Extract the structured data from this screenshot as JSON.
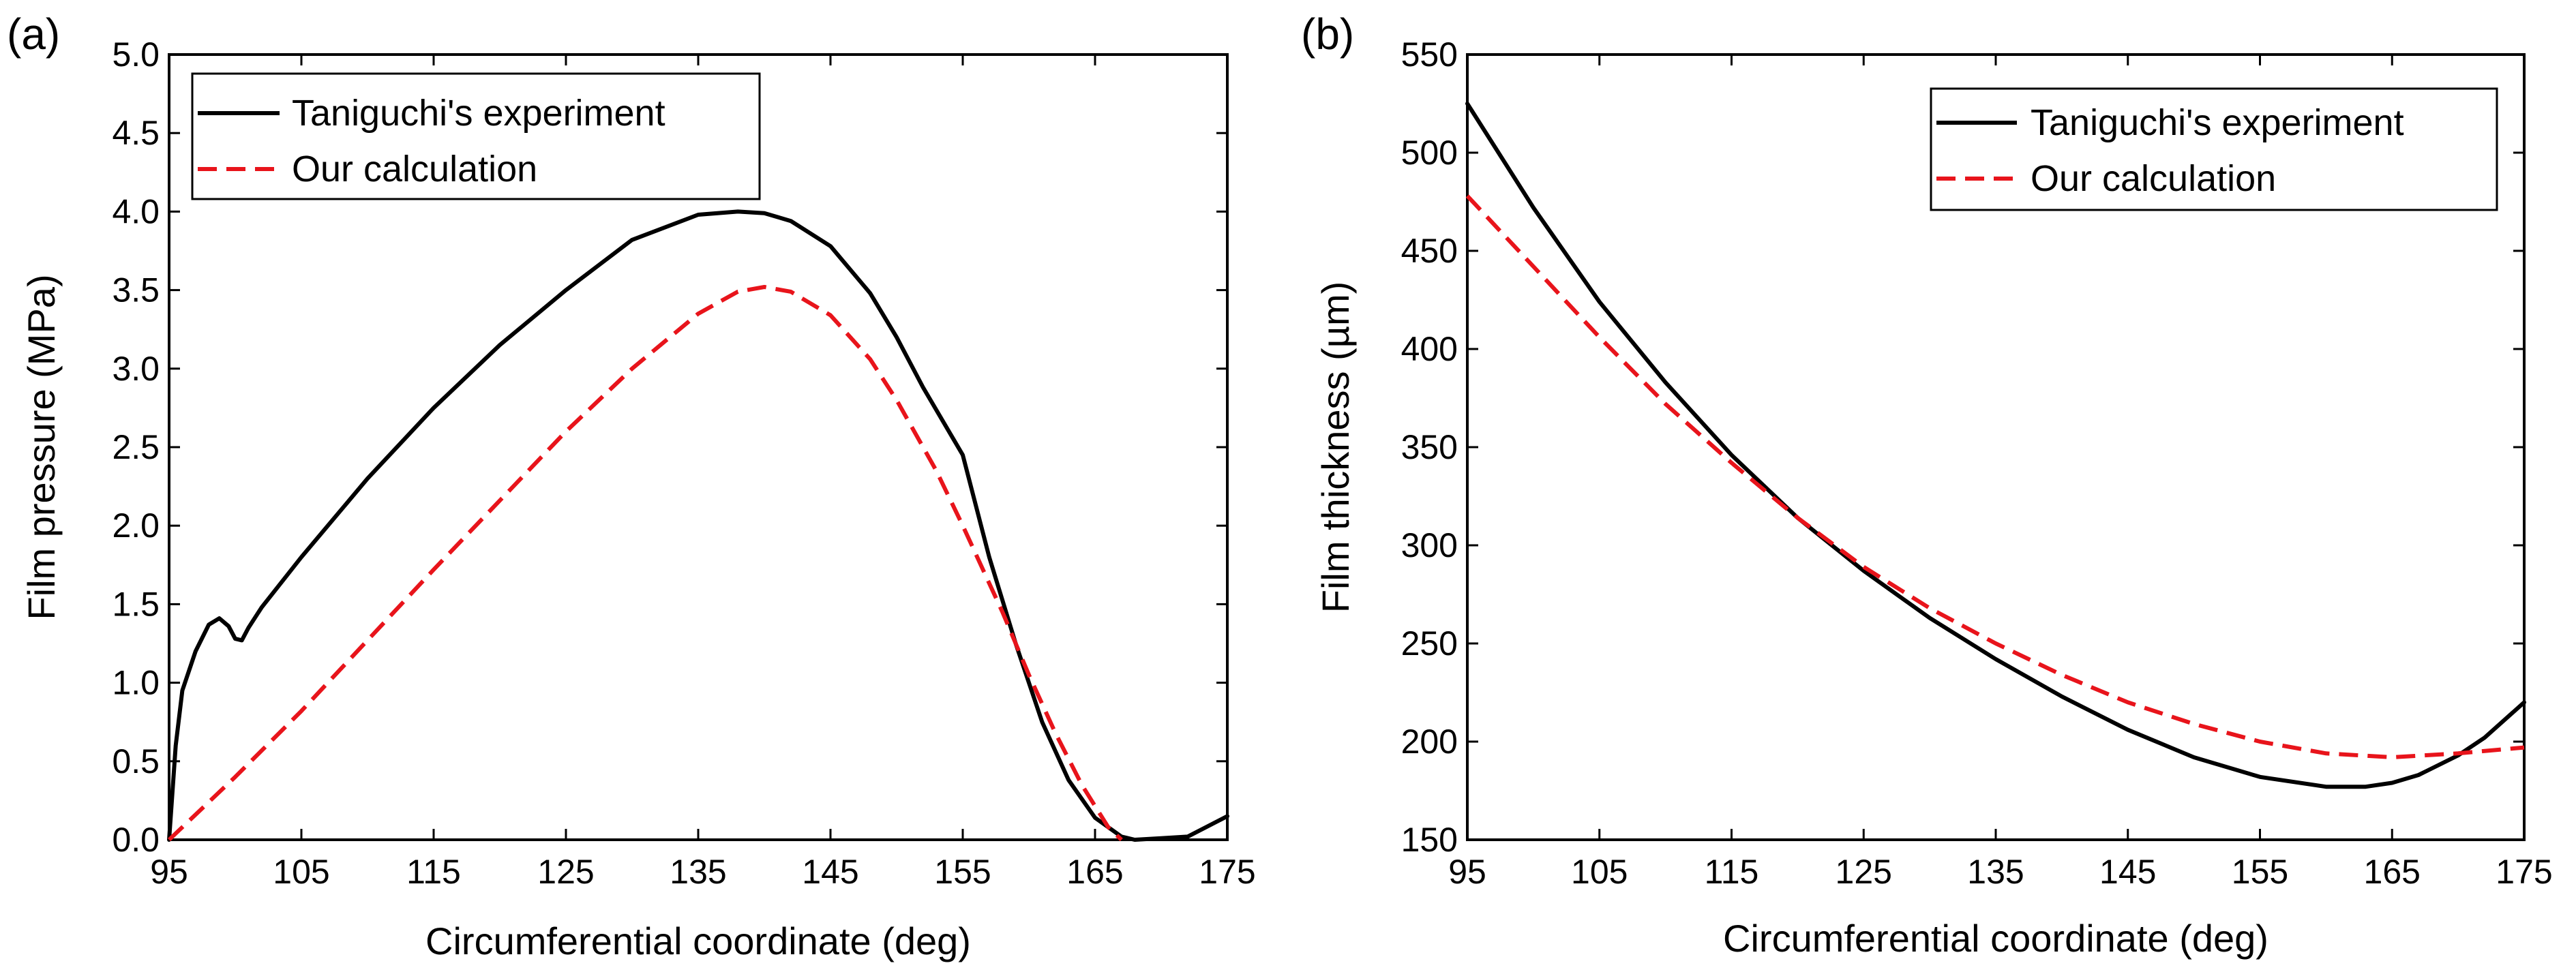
{
  "chart_data": [
    {
      "type": "line",
      "panel_label": "(a)",
      "xlabel": "Circumferential coordinate (deg)",
      "ylabel": "Film pressure (MPa)",
      "xlim": [
        95,
        175
      ],
      "ylim": [
        0,
        5
      ],
      "xticks": [
        "95",
        "105",
        "115",
        "125",
        "135",
        "145",
        "155",
        "165",
        "175"
      ],
      "yticks": [
        "0.0",
        "0.5",
        "1.0",
        "1.5",
        "2.0",
        "2.5",
        "3.0",
        "3.5",
        "4.0",
        "4.5",
        "5.0"
      ],
      "legend_position": "top-left",
      "series": [
        {
          "name": "Taniguchi's experiment",
          "color": "#000000",
          "style": "solid",
          "x": [
            95,
            95.5,
            96,
            97,
            98,
            98.8,
            99.5,
            100,
            100.5,
            101,
            102,
            105,
            110,
            115,
            120,
            125,
            130,
            135,
            138,
            140,
            142,
            145,
            148,
            150,
            152,
            155,
            157,
            159,
            161,
            163,
            165,
            167,
            168,
            170,
            172,
            175
          ],
          "y": [
            0.0,
            0.6,
            0.95,
            1.2,
            1.37,
            1.41,
            1.36,
            1.28,
            1.27,
            1.35,
            1.48,
            1.8,
            2.3,
            2.75,
            3.15,
            3.5,
            3.82,
            3.98,
            4.0,
            3.99,
            3.94,
            3.78,
            3.48,
            3.2,
            2.88,
            2.45,
            1.8,
            1.25,
            0.75,
            0.38,
            0.14,
            0.02,
            0.0,
            0.01,
            0.02,
            0.15
          ]
        },
        {
          "name": "Our calculation",
          "color": "#e8141b",
          "style": "dashed",
          "x": [
            95,
            100,
            105,
            110,
            115,
            120,
            125,
            130,
            135,
            138,
            140,
            142,
            145,
            148,
            150,
            153,
            155,
            158,
            160,
            162,
            164,
            166,
            167
          ],
          "y": [
            0.0,
            0.4,
            0.82,
            1.27,
            1.72,
            2.16,
            2.6,
            3.0,
            3.35,
            3.49,
            3.52,
            3.49,
            3.34,
            3.06,
            2.8,
            2.35,
            2.0,
            1.45,
            1.05,
            0.68,
            0.35,
            0.08,
            0.0
          ]
        }
      ]
    },
    {
      "type": "line",
      "panel_label": "(b)",
      "xlabel": "Circumferential coordinate (deg)",
      "ylabel": "Film thickness (µm)",
      "xlim": [
        95,
        175
      ],
      "ylim": [
        150,
        550
      ],
      "xticks": [
        "95",
        "105",
        "115",
        "125",
        "135",
        "145",
        "155",
        "165",
        "175"
      ],
      "yticks": [
        "150",
        "200",
        "250",
        "300",
        "350",
        "400",
        "450",
        "500",
        "550"
      ],
      "legend_position": "top-right",
      "series": [
        {
          "name": "Taniguchi's experiment",
          "color": "#000000",
          "style": "solid",
          "x": [
            95,
            100,
            105,
            110,
            115,
            120,
            125,
            130,
            135,
            140,
            145,
            150,
            155,
            160,
            163,
            165,
            167,
            170,
            172,
            175
          ],
          "y": [
            525,
            472,
            424,
            383,
            346,
            314,
            287,
            263,
            242,
            223,
            206,
            192,
            182,
            177,
            177,
            179,
            183,
            193,
            202,
            220
          ]
        },
        {
          "name": "Our calculation",
          "color": "#e8141b",
          "style": "dashed",
          "x": [
            95,
            100,
            105,
            110,
            115,
            120,
            125,
            130,
            135,
            140,
            145,
            150,
            155,
            160,
            165,
            170,
            175
          ],
          "y": [
            478,
            442,
            406,
            372,
            342,
            314,
            289,
            268,
            250,
            234,
            220,
            209,
            200,
            194,
            192,
            194,
            197
          ]
        }
      ]
    }
  ]
}
